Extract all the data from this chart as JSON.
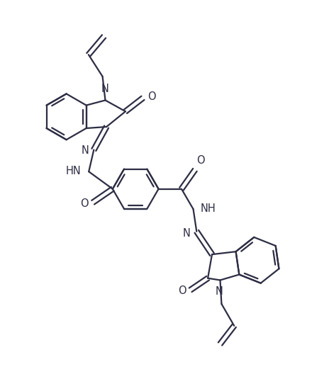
{
  "background": "#ffffff",
  "line_color": "#2d2d44",
  "line_width": 1.6,
  "font_size": 10.5,
  "figsize": [
    4.4,
    5.35
  ],
  "dpi": 100,
  "xlim": [
    0,
    11
  ],
  "ylim": [
    0,
    13
  ]
}
